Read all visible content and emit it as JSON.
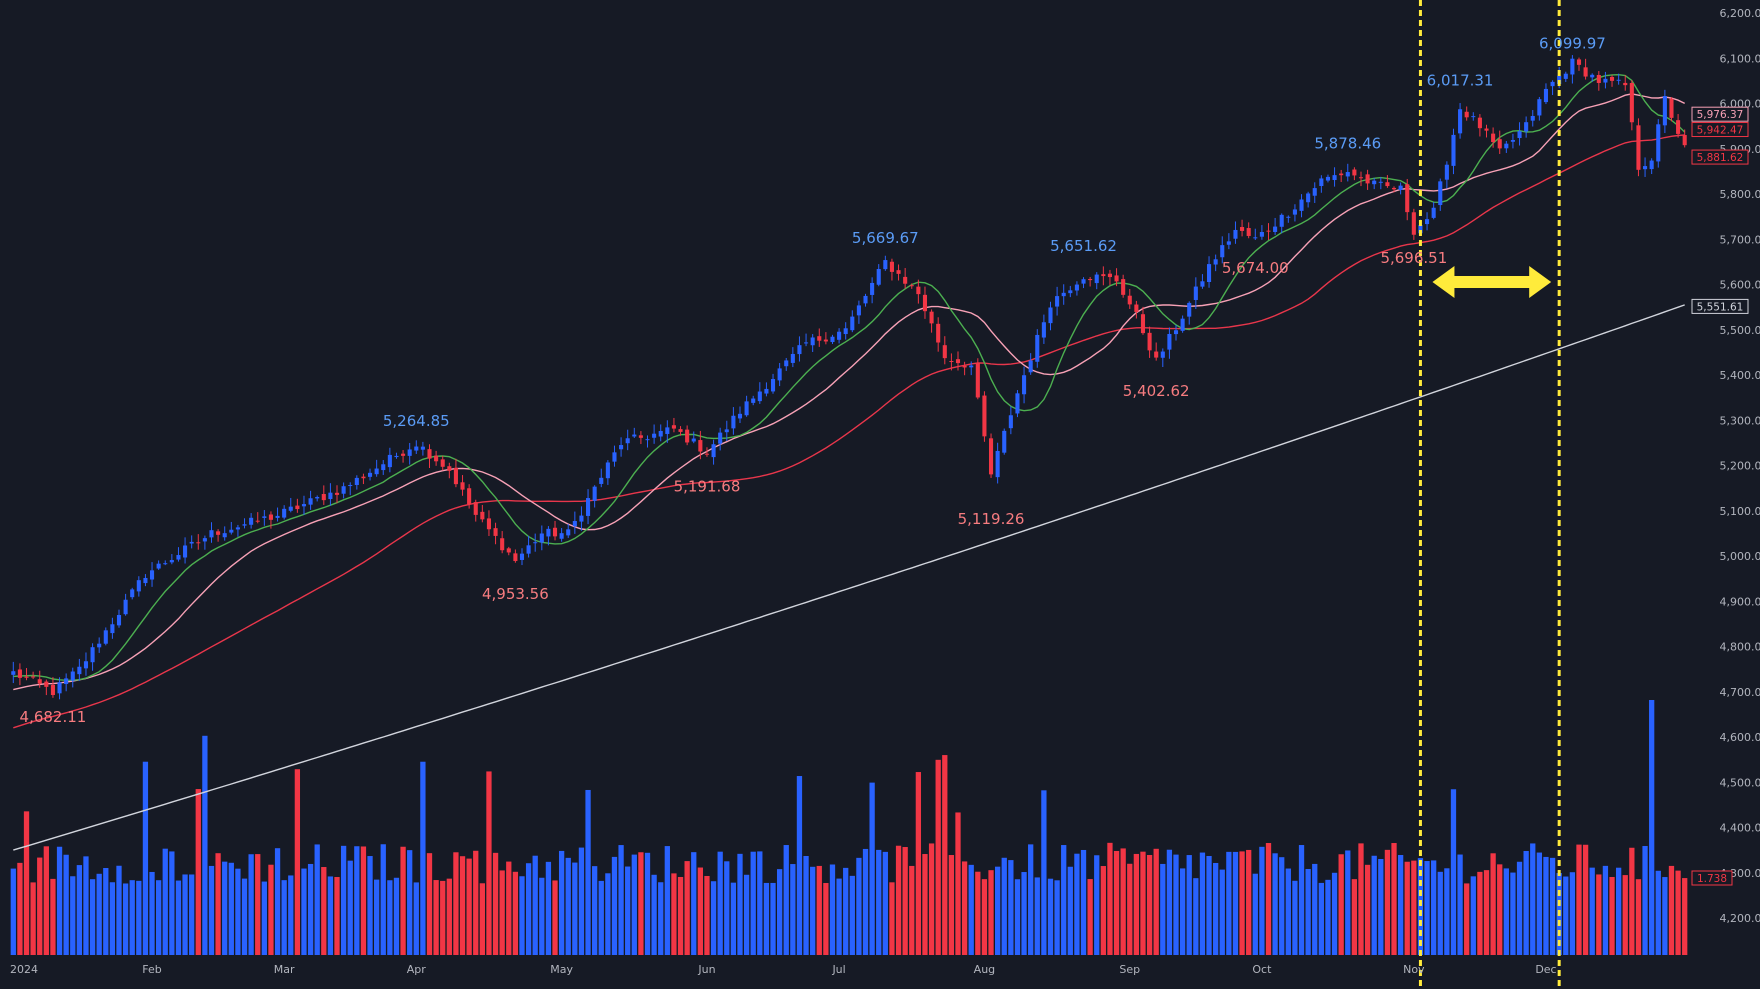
{
  "colors": {
    "background": "#161a25",
    "up": "#2962ff",
    "down": "#f23645",
    "ma_green": "#4caf50",
    "ma_pink": "#f7a1b6",
    "ma_red": "#e8364b",
    "ma_white": "#d1d4dc",
    "marker": "#ffeb3b"
  },
  "chart_data": {
    "type": "candlestick",
    "title": "",
    "x_ticks": [
      "2024",
      "Feb",
      "Mar",
      "Apr",
      "May",
      "Jun",
      "Jul",
      "Aug",
      "Sep",
      "Oct",
      "Nov",
      "Dec"
    ],
    "price_ticks": [
      "6,200.00",
      "6,100.00",
      "6,000.00",
      "5,900.00",
      "5,800.00",
      "5,700.00",
      "5,600.00",
      "5,500.00",
      "5,400.00",
      "5,300.00",
      "5,200.00",
      "5,100.00",
      "5,000.00",
      "4,900.00",
      "4,800.00",
      "4,700.00",
      "4,600.00",
      "4,500.00",
      "4,400.00",
      "4,300.00",
      "4,200.00"
    ],
    "price_tick_values": [
      6200,
      6100,
      6000,
      5900,
      5800,
      5700,
      5600,
      5500,
      5400,
      5300,
      5200,
      5100,
      5000,
      4900,
      4800,
      4700,
      4600,
      4500,
      4400,
      4300,
      4200
    ],
    "ylim": [
      4120,
      6225
    ],
    "swing_annotations": [
      {
        "text": "4,682.11",
        "type": "low",
        "date_index": 6,
        "value": 4682.11
      },
      {
        "text": "5,264.85",
        "type": "high",
        "date_index": 61,
        "value": 5264.85
      },
      {
        "text": "4,953.56",
        "type": "low",
        "date_index": 76,
        "value": 4953.56
      },
      {
        "text": "5,191.68",
        "type": "low",
        "date_index": 105,
        "value": 5191.68
      },
      {
        "text": "5,669.67",
        "type": "high",
        "date_index": 132,
        "value": 5669.67
      },
      {
        "text": "5,119.26",
        "type": "low",
        "date_index": 148,
        "value": 5119.26
      },
      {
        "text": "5,651.62",
        "type": "high",
        "date_index": 162,
        "value": 5651.62
      },
      {
        "text": "5,402.62",
        "type": "low",
        "date_index": 173,
        "value": 5402.62
      },
      {
        "text": "5,674.00",
        "type": "low",
        "date_index": 188,
        "value": 5674.0
      },
      {
        "text": "5,878.46",
        "type": "high",
        "date_index": 202,
        "value": 5878.46
      },
      {
        "text": "5,696.51",
        "type": "low",
        "date_index": 212,
        "value": 5696.51
      },
      {
        "text": "6,017.31",
        "type": "high",
        "date_index": 219,
        "value": 6017.31
      },
      {
        "text": "6,099.97",
        "type": "high",
        "date_index": 236,
        "value": 6099.97
      }
    ],
    "price_tags": [
      {
        "text": "5,976.37",
        "value": 5976.37,
        "color": "#f7a1b6"
      },
      {
        "text": "5,942.47",
        "value": 5942.47,
        "color": "#f23645"
      },
      {
        "text": "5,881.62",
        "value": 5881.62,
        "color": "#f23645"
      },
      {
        "text": "5,551.61",
        "value": 5551.61,
        "color": "#d1d4dc"
      }
    ],
    "volume_tag": {
      "text": "1.738",
      "color": "#f23645"
    },
    "anchors": [
      [
        0,
        4742
      ],
      [
        6,
        4700
      ],
      [
        10,
        4750
      ],
      [
        20,
        4960
      ],
      [
        30,
        5050
      ],
      [
        40,
        5090
      ],
      [
        50,
        5150
      ],
      [
        61,
        5250
      ],
      [
        66,
        5190
      ],
      [
        70,
        5090
      ],
      [
        76,
        4990
      ],
      [
        80,
        5050
      ],
      [
        84,
        5050
      ],
      [
        92,
        5250
      ],
      [
        100,
        5280
      ],
      [
        105,
        5230
      ],
      [
        110,
        5320
      ],
      [
        120,
        5470
      ],
      [
        126,
        5500
      ],
      [
        132,
        5650
      ],
      [
        137,
        5580
      ],
      [
        141,
        5440
      ],
      [
        145,
        5420
      ],
      [
        148,
        5180
      ],
      [
        152,
        5360
      ],
      [
        157,
        5560
      ],
      [
        162,
        5620
      ],
      [
        167,
        5610
      ],
      [
        170,
        5530
      ],
      [
        173,
        5430
      ],
      [
        177,
        5530
      ],
      [
        181,
        5640
      ],
      [
        185,
        5720
      ],
      [
        188,
        5700
      ],
      [
        193,
        5760
      ],
      [
        198,
        5830
      ],
      [
        202,
        5850
      ],
      [
        206,
        5820
      ],
      [
        210,
        5810
      ],
      [
        212,
        5720
      ],
      [
        215,
        5760
      ],
      [
        219,
        5990
      ],
      [
        222,
        5950
      ],
      [
        225,
        5890
      ],
      [
        229,
        5950
      ],
      [
        232,
        6030
      ],
      [
        236,
        6090
      ],
      [
        240,
        6050
      ],
      [
        244,
        6040
      ],
      [
        246,
        5860
      ],
      [
        248,
        5880
      ],
      [
        250,
        6010
      ],
      [
        253,
        5900
      ]
    ],
    "ma_periods": {
      "green": 10,
      "pink": 20,
      "red": 50,
      "white": 200
    },
    "volume_range": [
      4120,
      4690
    ],
    "marker_dates": [
      213,
      234
    ]
  }
}
